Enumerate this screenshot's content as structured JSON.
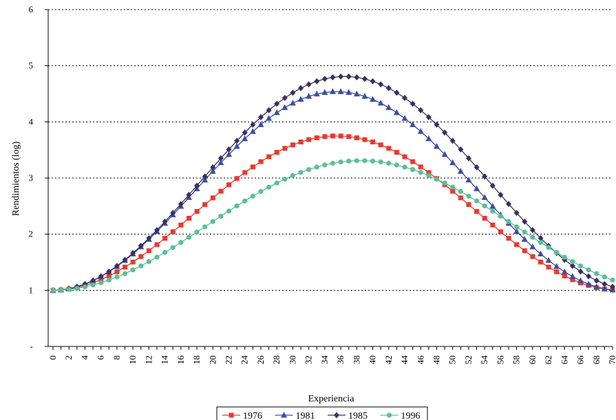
{
  "chart_data": {
    "type": "line",
    "title": "",
    "xlabel": "Experiencia",
    "ylabel": "Rendimientos (log)",
    "xlim": [
      0,
      70
    ],
    "ylim": [
      0,
      6
    ],
    "x_ticks": [
      0,
      2,
      4,
      6,
      8,
      10,
      12,
      14,
      16,
      18,
      20,
      22,
      24,
      26,
      28,
      30,
      32,
      34,
      36,
      38,
      40,
      42,
      44,
      46,
      48,
      50,
      52,
      54,
      56,
      58,
      60,
      62,
      64,
      66,
      68,
      70
    ],
    "y_ticks": [
      {
        "value": 0,
        "label": "-"
      },
      {
        "value": 1,
        "label": "1"
      },
      {
        "value": 2,
        "label": "2"
      },
      {
        "value": 3,
        "label": "3"
      },
      {
        "value": 4,
        "label": "4"
      },
      {
        "value": 5,
        "label": "5"
      },
      {
        "value": 6,
        "label": "6"
      }
    ],
    "grid": "horizontal dotted",
    "legend_position": "bottom",
    "series": [
      {
        "name": "1976",
        "color": "#e8392f",
        "marker": "square",
        "amplitude": 2.75,
        "peak_x": 35.5
      },
      {
        "name": "1981",
        "color": "#3d4ea0",
        "marker": "triangle",
        "amplitude": 3.54,
        "peak_x": 35.5
      },
      {
        "name": "1985",
        "color": "#3a3060",
        "marker": "diamond",
        "amplitude": 3.81,
        "peak_x": 36.5
      },
      {
        "name": "1996",
        "color": "#5cbf96",
        "marker": "circle",
        "amplitude": 2.31,
        "peak_x": 38.5
      }
    ],
    "curve": "y = 1 + amplitude * sin(pi * x / (2 * peak_x))^2"
  }
}
